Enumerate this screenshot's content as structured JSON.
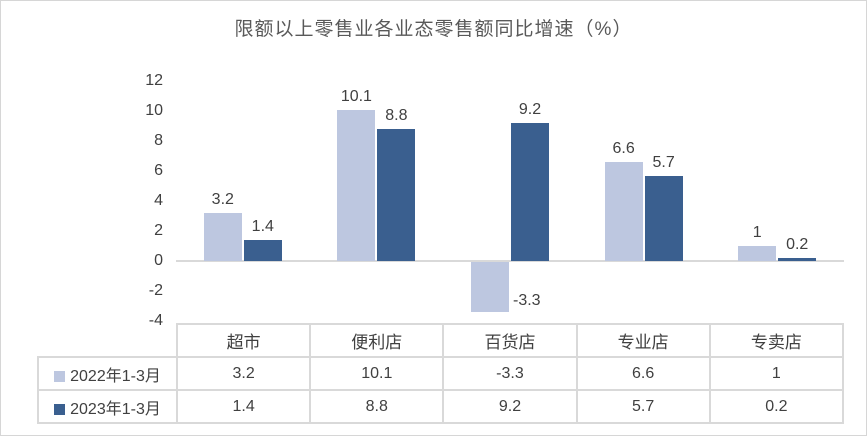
{
  "chart_data": {
    "type": "bar",
    "title": "限额以上零售业各业态零售额同比增速（%）",
    "categories": [
      "超市",
      "便利店",
      "百货店",
      "专业店",
      "专卖店"
    ],
    "series": [
      {
        "name": "2022年1-3月",
        "color": "#BDC7E0",
        "values": [
          3.2,
          10.1,
          -3.3,
          6.6,
          1
        ]
      },
      {
        "name": "2023年1-3月",
        "color": "#3A5F8F",
        "values": [
          1.4,
          8.8,
          9.2,
          5.7,
          0.2
        ]
      }
    ],
    "yticks": [
      12,
      10,
      8,
      6,
      4,
      2,
      0,
      -2,
      -4
    ],
    "ylim": [
      -4,
      13
    ],
    "grid": false,
    "legend_position": "bottom-table",
    "colors": {
      "axis_line": "#d9d9d9",
      "table_border": "#d9d9d9",
      "label_text": "#404040",
      "title_text": "#595959",
      "background": "#ffffff"
    }
  }
}
